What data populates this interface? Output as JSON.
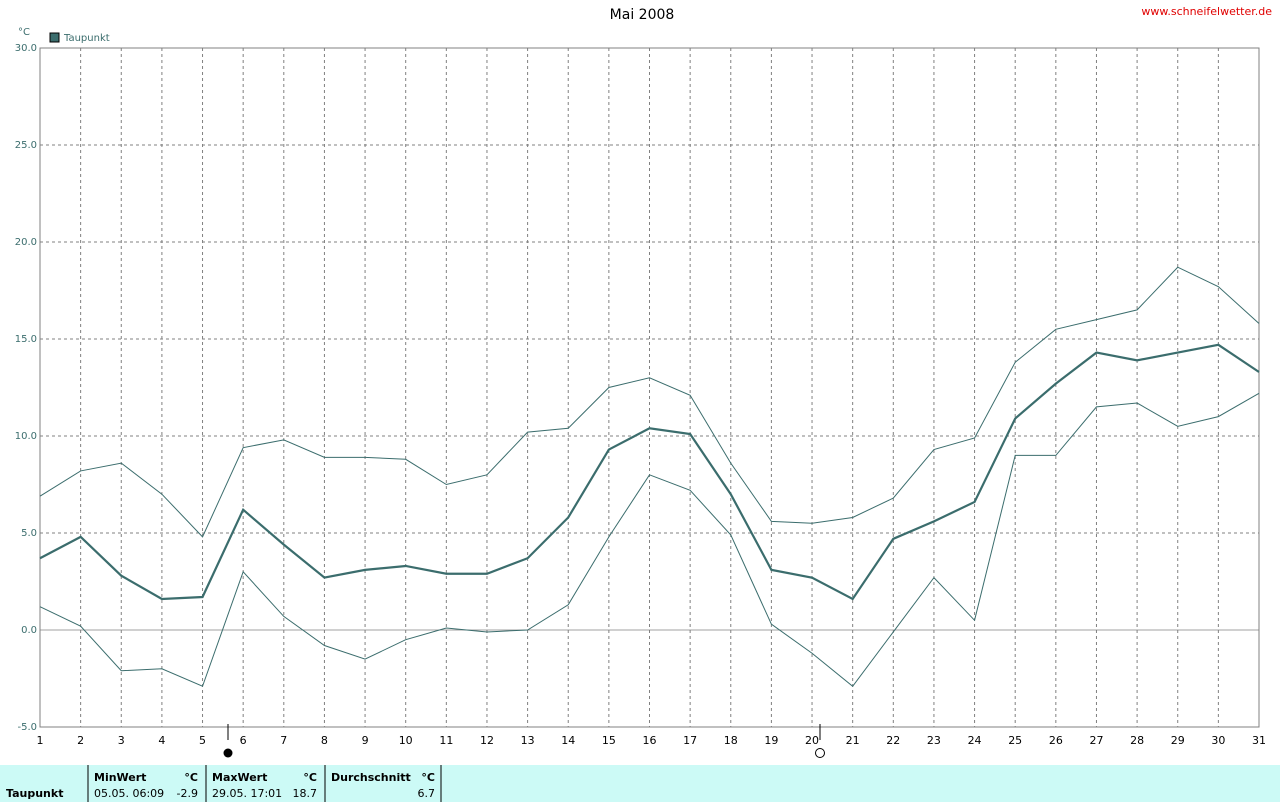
{
  "chart_data": {
    "type": "line",
    "title": "Mai 2008",
    "source": "www.schneifelwetter.de",
    "y_unit": "°C",
    "x": [
      1,
      2,
      3,
      4,
      5,
      6,
      7,
      8,
      9,
      10,
      11,
      12,
      13,
      14,
      15,
      16,
      17,
      18,
      19,
      20,
      21,
      22,
      23,
      24,
      25,
      26,
      27,
      28,
      29,
      30,
      31
    ],
    "xlim": [
      1,
      31
    ],
    "xticks": [
      1,
      2,
      3,
      4,
      5,
      6,
      7,
      8,
      9,
      10,
      11,
      12,
      13,
      14,
      15,
      16,
      17,
      18,
      19,
      20,
      21,
      22,
      23,
      24,
      25,
      26,
      27,
      28,
      29,
      30,
      31
    ],
    "ylim": [
      -5,
      30
    ],
    "yticks": [
      {
        "value": -5,
        "label": "-5.0"
      },
      {
        "value": 0,
        "label": "0.0"
      },
      {
        "value": 5,
        "label": "5.0"
      },
      {
        "value": 10,
        "label": "10.0"
      },
      {
        "value": 15,
        "label": "15.0"
      },
      {
        "value": 20,
        "label": "20.0"
      },
      {
        "value": 25,
        "label": "25.0"
      },
      {
        "value": 30,
        "label": "30.0"
      }
    ],
    "grid": true,
    "legend": "top-left",
    "series": [
      {
        "name": "Taupunkt",
        "color": "#3b6d6d",
        "values": [
          3.7,
          4.8,
          2.8,
          1.6,
          1.7,
          6.2,
          4.4,
          2.7,
          3.1,
          3.3,
          2.9,
          2.9,
          3.7,
          5.8,
          9.3,
          10.4,
          10.1,
          7.0,
          3.1,
          2.7,
          1.6,
          4.7,
          5.6,
          6.6,
          10.9,
          12.7,
          14.3,
          13.9,
          14.3,
          14.7,
          13.3
        ]
      },
      {
        "color": "#3b6d6d",
        "values": [
          6.9,
          8.2,
          8.6,
          7.0,
          4.8,
          9.4,
          9.8,
          8.9,
          8.9,
          8.8,
          7.5,
          8.0,
          10.2,
          10.4,
          12.5,
          13.0,
          12.1,
          8.6,
          5.6,
          5.5,
          5.8,
          6.8,
          9.3,
          9.9,
          13.8,
          15.5,
          16.0,
          16.5,
          18.7,
          17.7,
          15.8
        ]
      },
      {
        "color": "#3b6d6d",
        "values": [
          1.2,
          0.2,
          -2.1,
          -2.0,
          -2.9,
          3.0,
          0.7,
          -0.8,
          -1.5,
          -0.5,
          0.1,
          -0.1,
          0.0,
          1.3,
          4.8,
          8.0,
          7.2,
          4.9,
          0.3,
          -1.2,
          -2.9,
          -0.1,
          2.7,
          0.5,
          9.0,
          9.0,
          11.5,
          11.7,
          10.5,
          11.0,
          12.2
        ]
      }
    ]
  },
  "summary": {
    "label": "Taupunkt",
    "min": {
      "header": "MinWert",
      "unit": "°C",
      "time": "05.05.  06:09",
      "value": "-2.9"
    },
    "max": {
      "header": "MaxWert",
      "unit": "°C",
      "time": "29.05.  17:01",
      "value": "18.7"
    },
    "avg": {
      "header": "Durchschnitt",
      "unit": "°C",
      "value": "6.7"
    }
  }
}
